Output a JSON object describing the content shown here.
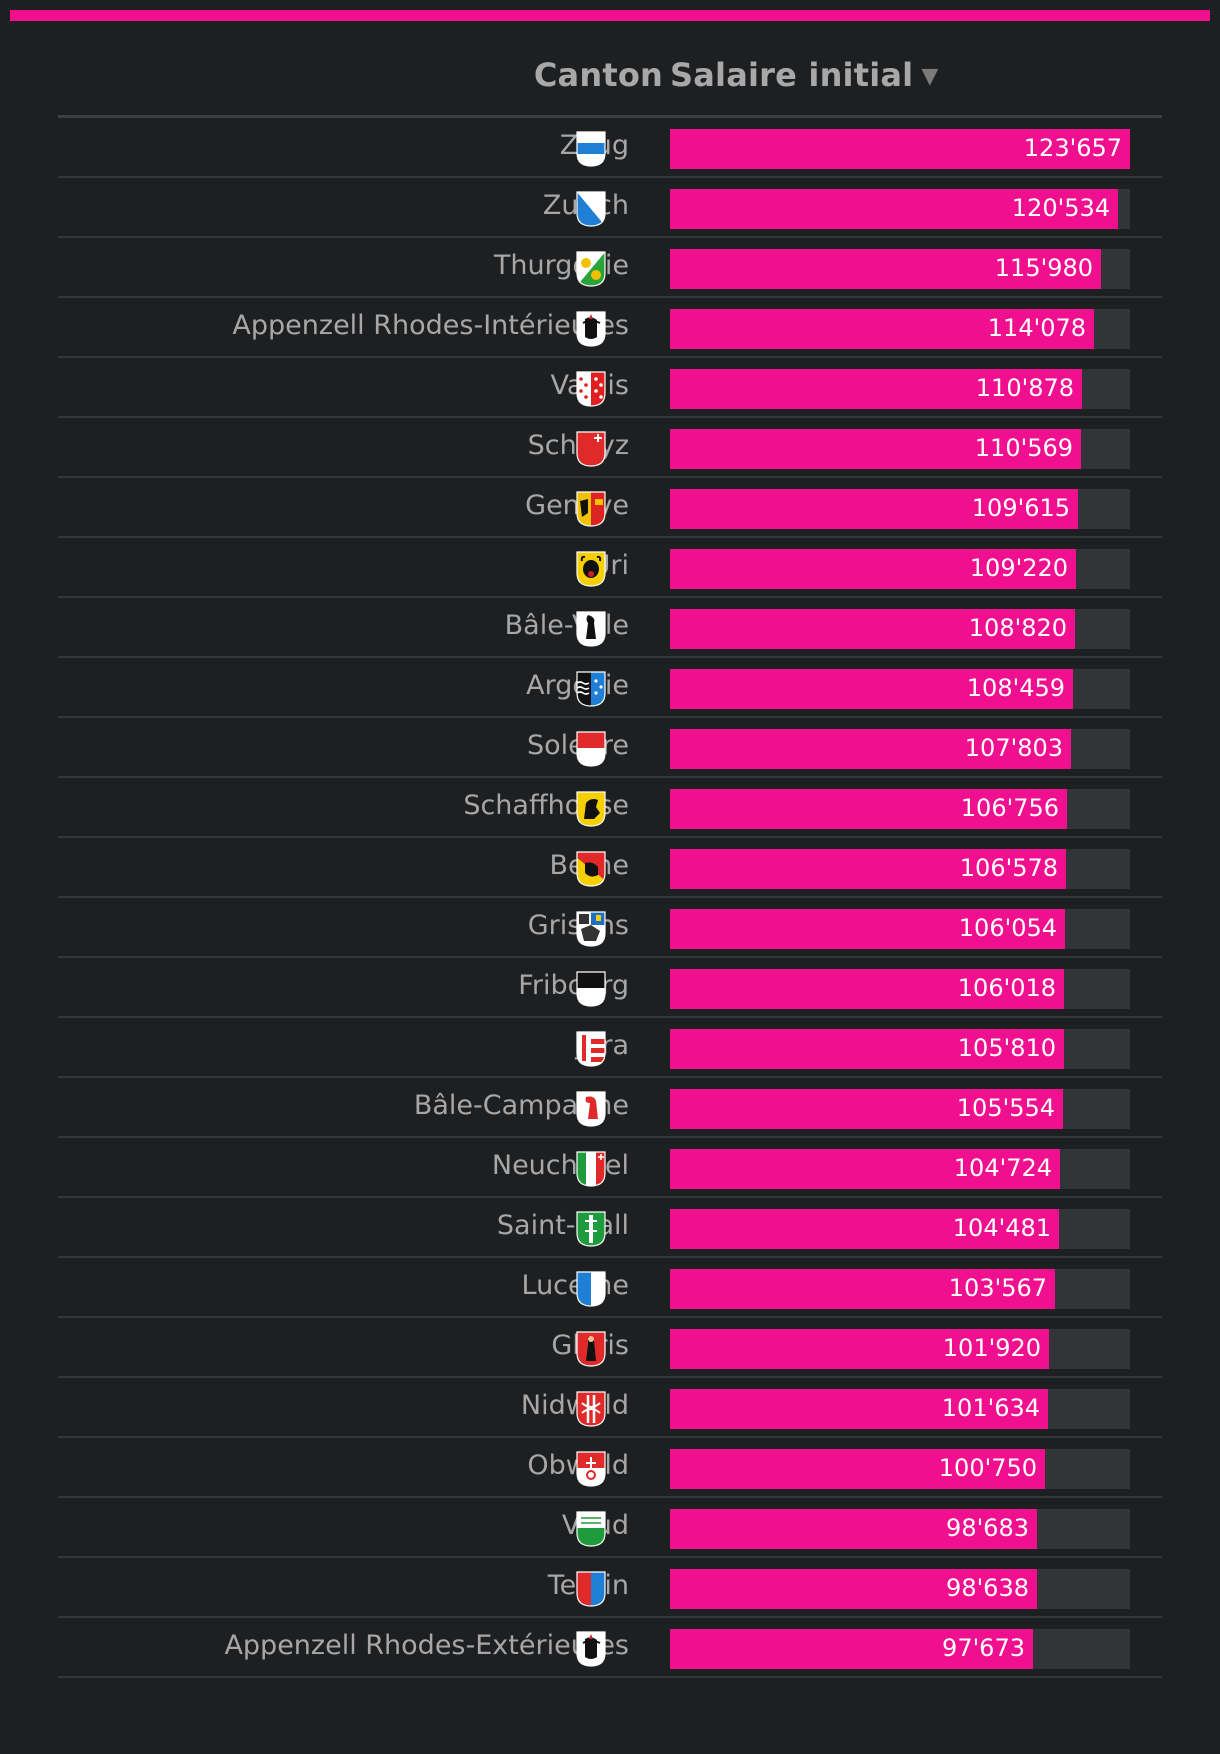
{
  "colors": {
    "accent": "#f0108f",
    "background": "#1e1f21",
    "track": "#333437",
    "text": "#a7a7a7"
  },
  "header": {
    "canton_label": "Canton",
    "salary_label": "Salaire initial",
    "sort_icon": "▼"
  },
  "chart_data": {
    "type": "bar",
    "orientation": "horizontal",
    "xlabel": "Salaire initial",
    "ylabel": "Canton",
    "xlim": [
      0,
      123657
    ],
    "sort": "descending",
    "rows": [
      {
        "canton": "Zoug",
        "value": 123657,
        "label": "123'657",
        "crest_icon": "zoug-crest-icon"
      },
      {
        "canton": "Zurich",
        "value": 120534,
        "label": "120'534",
        "crest_icon": "zurich-crest-icon"
      },
      {
        "canton": "Thurgovie",
        "value": 115980,
        "label": "115'980",
        "crest_icon": "thurgovie-crest-icon"
      },
      {
        "canton": "Appenzell Rhodes-Intérieures",
        "value": 114078,
        "label": "114'078",
        "crest_icon": "appenzell-ri-crest-icon"
      },
      {
        "canton": "Valais",
        "value": 110878,
        "label": "110'878",
        "crest_icon": "valais-crest-icon"
      },
      {
        "canton": "Schwyz",
        "value": 110569,
        "label": "110'569",
        "crest_icon": "schwyz-crest-icon"
      },
      {
        "canton": "Genève",
        "value": 109615,
        "label": "109'615",
        "crest_icon": "geneve-crest-icon"
      },
      {
        "canton": "Uri",
        "value": 109220,
        "label": "109'220",
        "crest_icon": "uri-crest-icon"
      },
      {
        "canton": "Bâle-Ville",
        "value": 108820,
        "label": "108'820",
        "crest_icon": "bale-ville-crest-icon"
      },
      {
        "canton": "Argovie",
        "value": 108459,
        "label": "108'459",
        "crest_icon": "argovie-crest-icon"
      },
      {
        "canton": "Soleure",
        "value": 107803,
        "label": "107'803",
        "crest_icon": "soleure-crest-icon"
      },
      {
        "canton": "Schaffhouse",
        "value": 106756,
        "label": "106'756",
        "crest_icon": "schaffhouse-crest-icon"
      },
      {
        "canton": "Berne",
        "value": 106578,
        "label": "106'578",
        "crest_icon": "berne-crest-icon"
      },
      {
        "canton": "Grisons",
        "value": 106054,
        "label": "106'054",
        "crest_icon": "grisons-crest-icon"
      },
      {
        "canton": "Fribourg",
        "value": 106018,
        "label": "106'018",
        "crest_icon": "fribourg-crest-icon"
      },
      {
        "canton": "Jura",
        "value": 105810,
        "label": "105'810",
        "crest_icon": "jura-crest-icon"
      },
      {
        "canton": "Bâle-Campagne",
        "value": 105554,
        "label": "105'554",
        "crest_icon": "bale-campagne-crest-icon"
      },
      {
        "canton": "Neuchâtel",
        "value": 104724,
        "label": "104'724",
        "crest_icon": "neuchatel-crest-icon"
      },
      {
        "canton": "Saint-Gall",
        "value": 104481,
        "label": "104'481",
        "crest_icon": "saint-gall-crest-icon"
      },
      {
        "canton": "Lucerne",
        "value": 103567,
        "label": "103'567",
        "crest_icon": "lucerne-crest-icon"
      },
      {
        "canton": "Glaris",
        "value": 101920,
        "label": "101'920",
        "crest_icon": "glaris-crest-icon"
      },
      {
        "canton": "Nidwald",
        "value": 101634,
        "label": "101'634",
        "crest_icon": "nidwald-crest-icon"
      },
      {
        "canton": "Obwald",
        "value": 100750,
        "label": "100'750",
        "crest_icon": "obwald-crest-icon"
      },
      {
        "canton": "Vaud",
        "value": 98683,
        "label": "98'683",
        "crest_icon": "vaud-crest-icon"
      },
      {
        "canton": "Tessin",
        "value": 98638,
        "label": "98'638",
        "crest_icon": "tessin-crest-icon"
      },
      {
        "canton": "Appenzell Rhodes-Extérieures",
        "value": 97673,
        "label": "97'673",
        "crest_icon": "appenzell-re-crest-icon"
      }
    ]
  }
}
